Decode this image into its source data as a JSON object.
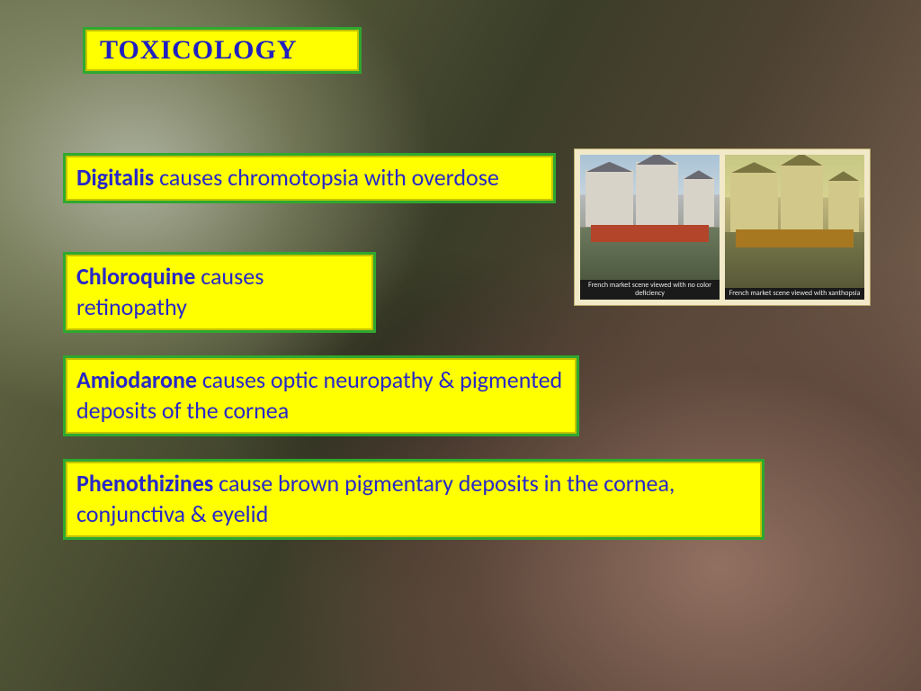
{
  "title": "TOXICOLOGY",
  "facts": [
    {
      "bold": "Digitalis",
      "rest": " causes chromotopsia with overdose"
    },
    {
      "bold": "Chloroquine",
      "rest": " causes retinopathy"
    },
    {
      "bold": "Amiodarone",
      "rest": " causes optic neuropathy & pigmented deposits of the cornea"
    },
    {
      "bold": "Phenothizines",
      "rest": " cause brown pigmentary deposits in the cornea, conjunctiva & eyelid"
    }
  ],
  "comparison": {
    "left_caption": "French market scene viewed with no color deficiency",
    "right_caption": "French market scene viewed with xanthopsia"
  },
  "style": {
    "box_bg": "#ffff00",
    "box_border": "#2fa82f",
    "box_inner_border": "#c5c400",
    "text_color": "#2828c8",
    "title_color": "#2020c0",
    "title_fontsize_pt": 30,
    "fact_fontsize_pt": 26,
    "caption_fontsize_pt": 8
  }
}
